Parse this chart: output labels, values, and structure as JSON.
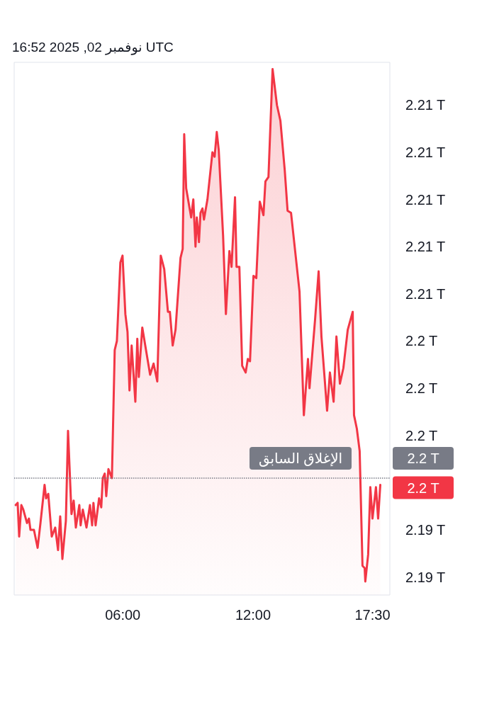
{
  "chart_data": {
    "type": "area",
    "title": "نوفمبر 02, 2025 16:52 UTC",
    "color": "#f23645",
    "marker": "none",
    "line_style": "solid",
    "grid": false,
    "x": [
      1.07,
      1.16,
      1.23,
      1.33,
      1.42,
      1.59,
      1.68,
      1.75,
      1.91,
      2.08,
      2.21,
      2.4,
      2.47,
      2.57,
      2.73,
      2.89,
      3.02,
      3.12,
      3.22,
      3.38,
      3.48,
      3.64,
      3.74,
      3.84,
      4.0,
      4.06,
      4.16,
      4.33,
      4.49,
      4.59,
      4.65,
      4.75,
      4.91,
      5.01,
      5.08,
      5.17,
      5.24,
      5.34,
      5.5,
      5.63,
      5.73,
      5.89,
      5.99,
      6.12,
      6.22,
      6.31,
      6.41,
      6.58,
      6.67,
      6.74,
      6.9,
      7.26,
      7.42,
      7.59,
      7.75,
      7.91,
      8.08,
      8.17,
      8.3,
      8.43,
      8.66,
      8.76,
      8.83,
      8.92,
      9.15,
      9.25,
      9.35,
      9.41,
      9.51,
      9.58,
      9.67,
      9.74,
      9.9,
      10.13,
      10.23,
      10.33,
      10.42,
      10.62,
      10.75,
      10.91,
      11.01,
      11.17,
      11.24,
      11.37,
      11.5,
      11.66,
      11.76,
      11.86,
      12.02,
      12.15,
      12.31,
      12.48,
      12.57,
      12.71,
      12.9,
      13.1,
      13.26,
      13.46,
      13.59,
      13.75,
      14.14,
      14.34,
      14.53,
      14.6,
      14.86,
      15.02,
      15.15,
      15.41,
      15.54,
      15.71,
      15.84,
      16.0,
      16.16,
      16.36,
      16.59,
      16.65,
      16.78,
      16.91,
      17.04,
      17.14,
      17.17,
      17.3,
      17.4,
      17.5,
      17.66,
      17.76,
      17.86
    ],
    "values": [
      2.1957,
      2.1958,
      2.1943,
      2.1957,
      2.1955,
      2.1949,
      2.1951,
      2.1946,
      2.1946,
      2.1938,
      2.1949,
      2.1966,
      2.196,
      2.1962,
      2.1943,
      2.1947,
      2.1937,
      2.1952,
      2.1933,
      2.195,
      2.199,
      2.1953,
      2.1959,
      2.1947,
      2.1957,
      2.1948,
      2.1955,
      2.1947,
      2.1957,
      2.1948,
      2.1958,
      2.1948,
      2.196,
      2.1956,
      2.1969,
      2.1971,
      2.1961,
      2.1973,
      2.1969,
      2.2026,
      2.203,
      2.2065,
      2.2068,
      2.2042,
      2.2034,
      2.2008,
      2.2028,
      2.2003,
      2.2031,
      2.2014,
      2.2036,
      2.2015,
      2.202,
      2.2012,
      2.2068,
      2.2062,
      2.2043,
      2.2043,
      2.2028,
      2.2035,
      2.2067,
      2.2071,
      2.2122,
      2.2098,
      2.2085,
      2.2093,
      2.2072,
      2.2085,
      2.2074,
      2.2087,
      2.2089,
      2.2084,
      2.2093,
      2.2114,
      2.2112,
      2.2123,
      2.2115,
      2.2077,
      2.2042,
      2.207,
      2.2063,
      2.2094,
      2.2063,
      2.2063,
      2.2019,
      2.2016,
      2.2022,
      2.2021,
      2.2059,
      2.2058,
      2.2092,
      2.2086,
      2.2101,
      2.2103,
      2.2151,
      2.2135,
      2.2128,
      2.2106,
      2.2088,
      2.2087,
      2.2052,
      2.1997,
      2.2022,
      2.2009,
      2.204,
      2.2061,
      2.2032,
      2.1999,
      2.2016,
      2.2003,
      2.2032,
      2.2011,
      2.2018,
      2.2035,
      2.2043,
      2.1997,
      2.1991,
      2.1981,
      2.193,
      2.1929,
      2.1923,
      2.1935,
      2.1965,
      2.1951,
      2.1965,
      2.1951,
      2.1966
    ],
    "xlim": [
      1,
      18.3
    ],
    "xticks": [
      {
        "value": 6,
        "label": "06:00"
      },
      {
        "value": 12,
        "label": "12:00"
      },
      {
        "value": 17.5,
        "label": "17:30"
      }
    ],
    "ylim": [
      2.1917,
      2.2154
    ],
    "yticks": [
      {
        "value": 2.1925,
        "label": "2.19 T"
      },
      {
        "value": 2.1946,
        "label": "2.19 T"
      },
      {
        "value": 2.1988,
        "label": "2.2 T"
      },
      {
        "value": 2.2009,
        "label": "2.2 T"
      },
      {
        "value": 2.203,
        "label": "2.2 T"
      },
      {
        "value": 2.2051,
        "label": "2.21 T"
      },
      {
        "value": 2.2072,
        "label": "2.21 T"
      },
      {
        "value": 2.2093,
        "label": "2.21 T"
      },
      {
        "value": 2.2114,
        "label": "2.21 T"
      },
      {
        "value": 2.2135,
        "label": "2.21 T"
      }
    ],
    "ref_lines": [
      {
        "axis": "y",
        "value": 2.1969,
        "label": "الإغلاق السابق",
        "color": "#787b86",
        "line_style": "dotted"
      }
    ],
    "annotations": [
      "2.2 T",
      "2.2 T"
    ]
  }
}
